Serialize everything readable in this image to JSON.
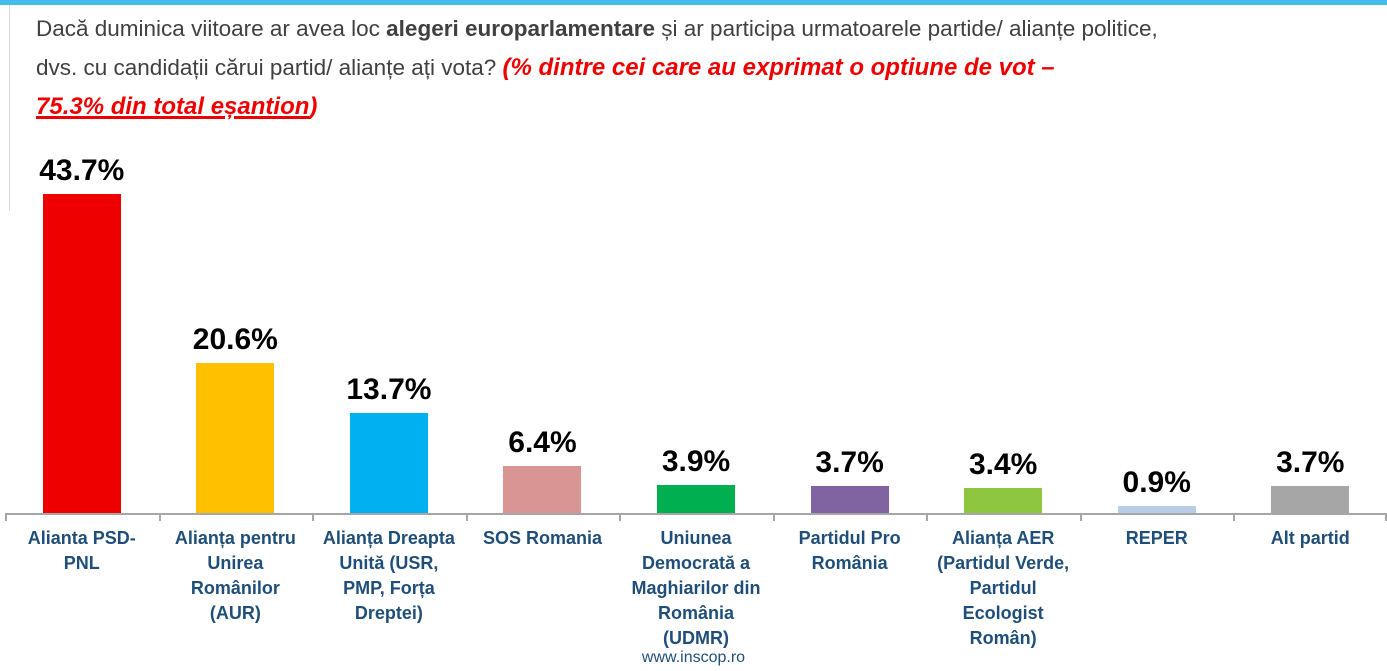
{
  "colors": {
    "accent_line": "#45BDEA",
    "title_text": "#404040",
    "highlight_red": "#EE0000",
    "category_label": "#1F4E79",
    "footer_text": "#1F4E79",
    "axis": "#A6A6A6"
  },
  "title": {
    "l1a": "Dacă duminica viitoare ar avea loc ",
    "l1b": "alegeri europarlamentare",
    "l1c": " și ar participa urmatoarele partide/ alianțe politice,",
    "l2a": "dvs. cu candidații cărui partid/ alianțe ați vota?  ",
    "l2b": "(% dintre cei care au exprimat o optiune de vot –",
    "l3a": "75.3% din total eșantion",
    "l3b": ")"
  },
  "footer": {
    "website": "www.inscop.ro"
  },
  "chart_data": {
    "type": "bar",
    "title": "Dacă duminica viitoare ar avea loc alegeri europarlamentare și ar participa urmatoarele partide/ alianțe politice, dvs. cu candidații cărui partid/ alianțe ați vota?",
    "subtitle": "(% dintre cei care au exprimat o optiune de vot – 75.3% din total eșantion)",
    "categories": [
      "Alianta PSD-PNL",
      "Alianța pentru Unirea Românilor (AUR)",
      "Alianța Dreapta Unită (USR, PMP, Forța Dreptei)",
      "SOS Romania",
      "Uniunea Democrată a Maghiarilor din România (UDMR)",
      "Partidul Pro România",
      "Alianța AER (Partidul Verde, Partidul Ecologist Român)",
      "REPER",
      "Alt partid"
    ],
    "category_display": [
      "Alianta PSD-\nPNL",
      "Alianța pentru\nUnirea\nRomânilor\n(AUR)",
      "Alianța Dreapta\nUnită (USR,\nPMP, Forța\nDreptei)",
      "SOS Romania",
      "Uniunea\nDemocrată a\nMaghiarilor din\nRomânia\n(UDMR)",
      "Partidul Pro\nRomânia",
      "Alianța AER\n(Partidul Verde,\nPartidul\nEcologist\nRomân)",
      "REPER",
      "Alt partid"
    ],
    "values": [
      43.7,
      20.6,
      13.7,
      6.4,
      3.9,
      3.7,
      3.4,
      0.9,
      3.7
    ],
    "value_labels": [
      "43.7%",
      "20.6%",
      "13.7%",
      "6.4%",
      "3.9%",
      "3.7%",
      "3.4%",
      "0.9%",
      "3.7%"
    ],
    "bar_colors": [
      "#EE0000",
      "#FFC000",
      "#00B0F0",
      "#D99594",
      "#00B050",
      "#8064A2",
      "#8EC63F",
      "#B7CCE6",
      "#A6A6A6"
    ],
    "ylim": [
      0,
      45
    ],
    "grid": false,
    "legend": false,
    "value_label_color": "#000000",
    "category_label_color": "#1F4E79",
    "axis_color": "#A6A6A6"
  }
}
